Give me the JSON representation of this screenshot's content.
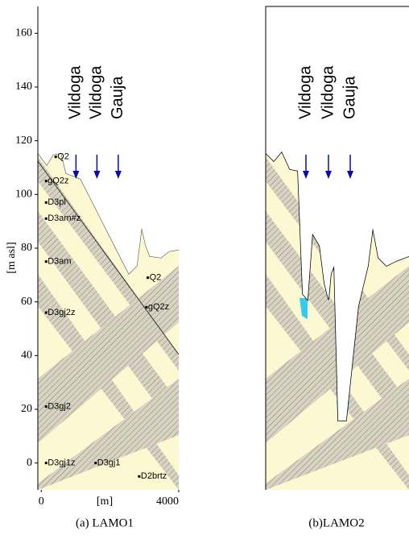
{
  "chart_data": [
    {
      "type": "section",
      "caption": "(a) LAMO1",
      "ylabel": "[m asl]",
      "xlabel": "[m]",
      "xlim": [
        -100,
        4000
      ],
      "ylim": [
        -10,
        170
      ],
      "xticks": [
        0,
        4000
      ],
      "yticks": [
        0,
        20,
        40,
        60,
        80,
        100,
        120,
        140,
        160
      ],
      "rivers": [
        {
          "name": "Vildoga",
          "x": 1010
        },
        {
          "name": "Vildoga",
          "x": 1620
        },
        {
          "name": "Gauja",
          "x": 2240
        }
      ],
      "annotations": [
        {
          "text": "Q2",
          "x": 420,
          "y": 114
        },
        {
          "text": "gQ2z",
          "x": 140,
          "y": 105
        },
        {
          "text": "D3pl",
          "x": 140,
          "y": 97
        },
        {
          "text": "D3am#z",
          "x": 140,
          "y": 91
        },
        {
          "text": "D3am",
          "x": 140,
          "y": 75
        },
        {
          "text": "Q2",
          "x": 3100,
          "y": 69
        },
        {
          "text": "gQ2z",
          "x": 3060,
          "y": 58
        },
        {
          "text": "D3gj2z",
          "x": 140,
          "y": 56
        },
        {
          "text": "D3gj2",
          "x": 140,
          "y": 21
        },
        {
          "text": "D3gj1z",
          "x": 140,
          "y": 0
        },
        {
          "text": "D3gj1",
          "x": 1580,
          "y": 0
        },
        {
          "text": "D2brtz",
          "x": 2850,
          "y": -5
        }
      ]
    },
    {
      "type": "section",
      "caption": "(b)LAMO2",
      "xlim": [
        -100,
        4000
      ],
      "ylim": [
        -10,
        170
      ],
      "rivers": [
        {
          "name": "Vildoga",
          "x": 1071
        },
        {
          "name": "Vildoga",
          "x": 1727
        },
        {
          "name": "Gauja",
          "x": 2360
        }
      ]
    }
  ]
}
